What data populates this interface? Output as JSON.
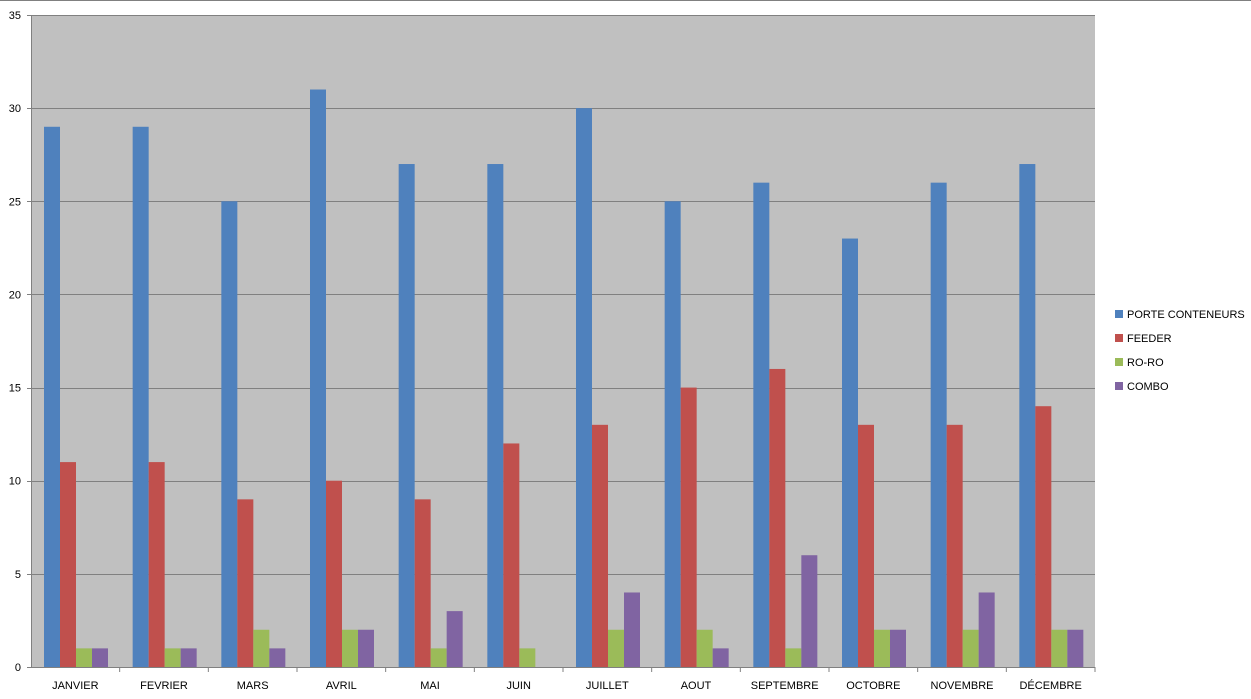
{
  "chart_data": {
    "type": "bar",
    "title": "",
    "xlabel": "",
    "ylabel": "",
    "categories": [
      "JANVIER",
      "FEVRIER",
      "MARS",
      "AVRIL",
      "MAI",
      "JUIN",
      "JUILLET",
      "AOUT",
      "SEPTEMBRE",
      "OCTOBRE",
      "NOVEMBRE",
      "DÉCEMBRE"
    ],
    "series": [
      {
        "name": "PORTE CONTENEURS",
        "color": "#4f81bd",
        "values": [
          29,
          29,
          25,
          31,
          27,
          27,
          30,
          25,
          26,
          23,
          26,
          27
        ]
      },
      {
        "name": "FEEDER",
        "color": "#c0504d",
        "values": [
          11,
          11,
          9,
          10,
          9,
          12,
          13,
          15,
          16,
          13,
          13,
          14
        ]
      },
      {
        "name": "RO-RO",
        "color": "#9bbb59",
        "values": [
          1,
          1,
          2,
          2,
          1,
          1,
          2,
          2,
          1,
          2,
          2,
          2
        ]
      },
      {
        "name": "COMBO",
        "color": "#8064a2",
        "values": [
          1,
          1,
          1,
          2,
          3,
          0,
          4,
          1,
          6,
          2,
          4,
          2
        ]
      }
    ],
    "ylim": [
      0,
      35
    ],
    "yticks": [
      0,
      5,
      10,
      15,
      20,
      25,
      30,
      35
    ],
    "grid": true,
    "legend_position": "right",
    "plot_background": "#c0c0c0"
  }
}
